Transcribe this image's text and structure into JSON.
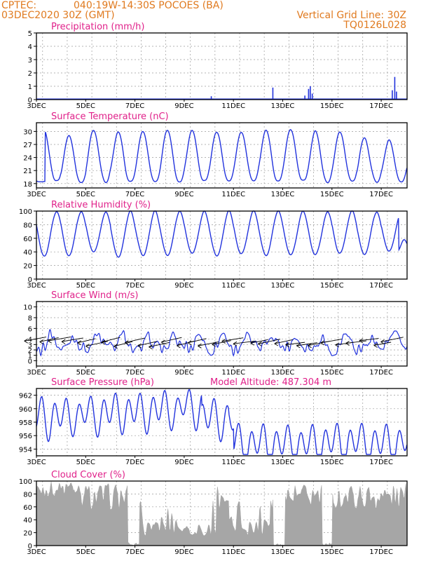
{
  "header": {
    "source": "CPTEC:",
    "location": "040:19W-14:30S   POCOES (BA)",
    "run": "03DEC2020 30Z (GMT)",
    "grid_note": "Vertical Grid Line: 30Z",
    "model_code": "TQ0126L028"
  },
  "colors": {
    "header": "#e07a1f",
    "panel_title": "#e0218a",
    "series": "#2233dd",
    "cloud": "#a6a6a6",
    "arrows": "#000000"
  },
  "x_ticks": [
    "3DEC",
    "5DEC",
    "7DEC",
    "9DEC",
    "11DEC",
    "13DEC",
    "15DEC",
    "17DEC"
  ],
  "chart_data": [
    {
      "type": "bar",
      "title": "Precipitation (mm/h)",
      "ylim": [
        0,
        5
      ],
      "yticks": [
        "0",
        "1",
        "2",
        "3",
        "4",
        "5"
      ],
      "points": [
        {
          "day": 10.1,
          "value": 0.25
        },
        {
          "day": 12.6,
          "value": 0.9
        },
        {
          "day": 13.9,
          "value": 0.3
        },
        {
          "day": 14.05,
          "value": 0.8
        },
        {
          "day": 14.12,
          "value": 1.0
        },
        {
          "day": 14.2,
          "value": 0.45
        },
        {
          "day": 17.45,
          "value": 0.7
        },
        {
          "day": 17.55,
          "value": 1.7
        },
        {
          "day": 17.62,
          "value": 0.6
        }
      ]
    },
    {
      "type": "line",
      "title": "Surface Temperature (nC)",
      "ylim": [
        17,
        32
      ],
      "yticks": [
        "18",
        "21",
        "24",
        "27",
        "30"
      ],
      "ytick_values": [
        18,
        21,
        24,
        27,
        30
      ],
      "daily_min": 18.5,
      "daily_max": [
        30,
        29,
        30.5,
        30,
        30,
        30.5,
        30.5,
        30,
        30,
        30.5,
        30.5,
        30,
        30,
        28.5,
        28
      ]
    },
    {
      "type": "line",
      "title": "Relative Humidity (%)",
      "ylim": [
        0,
        100
      ],
      "yticks": [
        "0",
        "20",
        "40",
        "60",
        "80",
        "100"
      ],
      "daily_min": [
        35,
        35,
        40,
        33,
        35,
        35,
        38,
        35,
        38,
        35,
        35,
        35,
        38,
        35,
        40
      ],
      "daily_max": 100
    },
    {
      "type": "line",
      "title": "Surface Wind (m/s)",
      "ylim": [
        -1,
        11
      ],
      "yticks": [
        "0",
        "1",
        "2",
        "3",
        "4",
        "6",
        "8",
        "10"
      ],
      "ytick_values": [
        0,
        1,
        2,
        3,
        4,
        6,
        8,
        10
      ],
      "direction": "easterly"
    },
    {
      "type": "line",
      "title": "Surface Pressure (hPa)",
      "annotation": "Model Altitude: 487.304 m",
      "ylim": [
        953,
        963
      ],
      "yticks": [
        "954",
        "956",
        "958",
        "960",
        "962"
      ],
      "ytick_values": [
        954,
        956,
        958,
        960,
        962
      ]
    },
    {
      "type": "area",
      "title": "Cloud Cover (%)",
      "ylim": [
        0,
        100
      ],
      "yticks": [
        "0",
        "20",
        "40",
        "60",
        "80",
        "100"
      ]
    }
  ]
}
